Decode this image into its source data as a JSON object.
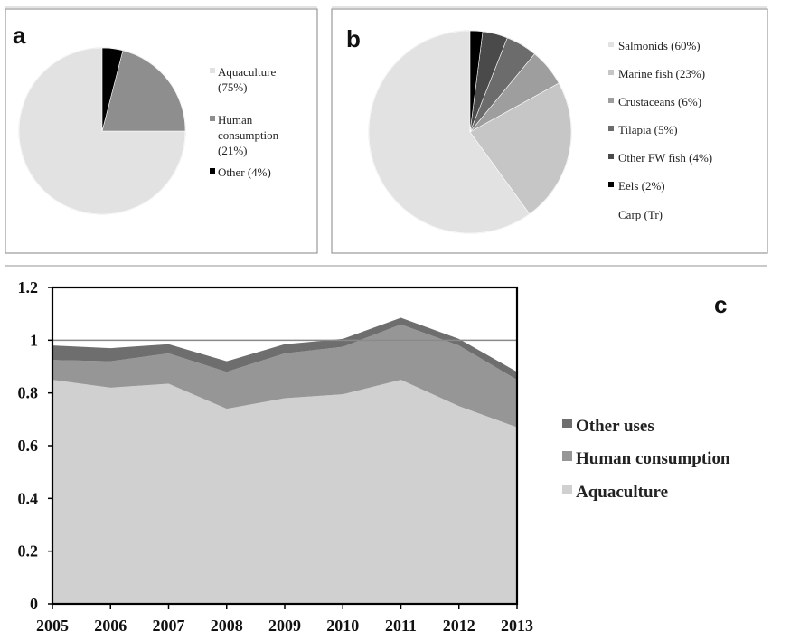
{
  "chart_data": [
    {
      "panel": "a",
      "type": "pie",
      "labels": [
        "Aquaculture (75%)",
        "Human consumption (21%)",
        "Other (4%)"
      ],
      "values": [
        75,
        21,
        4
      ],
      "colors": [
        "#e2e2e2",
        "#8e8e8e",
        "#000000"
      ]
    },
    {
      "panel": "b",
      "type": "pie",
      "labels": [
        "Salmonids (60%)",
        "Marine fish (23%)",
        "Crustaceans (6%)",
        "Tilapia (5%)",
        "Other FW fish (4%)",
        "Eels (2%)",
        "Carp (Tr)"
      ],
      "values": [
        60,
        23,
        6,
        5,
        4,
        2,
        0
      ],
      "colors": [
        "#e2e2e2",
        "#c6c6c6",
        "#9e9e9e",
        "#6c6c6c",
        "#4a4a4a",
        "#000000",
        "#ffffff"
      ]
    },
    {
      "panel": "c",
      "type": "area",
      "stacked": true,
      "x": [
        2005,
        2006,
        2007,
        2008,
        2009,
        2010,
        2011,
        2012,
        2013
      ],
      "series": [
        {
          "name": "Aquaculture",
          "values": [
            0.85,
            0.82,
            0.835,
            0.74,
            0.78,
            0.795,
            0.85,
            0.75,
            0.67
          ],
          "color": "#d0d0d0"
        },
        {
          "name": "Human consumption",
          "values": [
            0.075,
            0.1,
            0.115,
            0.14,
            0.17,
            0.18,
            0.21,
            0.23,
            0.18
          ],
          "color": "#969696"
        },
        {
          "name": "Other uses",
          "values": [
            0.055,
            0.05,
            0.035,
            0.04,
            0.035,
            0.03,
            0.025,
            0.025,
            0.03
          ],
          "color": "#6e6e6e"
        }
      ],
      "ylim": [
        0,
        1.2
      ],
      "yticks": [
        "0",
        "0.2",
        "0.4",
        "0.6",
        "0.8",
        "1",
        "1.2"
      ],
      "xticks": [
        "2005",
        "2006",
        "2007",
        "2008",
        "2009",
        "2010",
        "2011",
        "2012",
        "2013"
      ],
      "reference_line": 1,
      "legend": [
        "Other uses",
        "Human consumption",
        "Aquaculture"
      ],
      "legend_position": "right"
    }
  ],
  "panel_labels": {
    "a": "a",
    "b": "b",
    "c": "c"
  },
  "legend_a": [
    "Aquaculture",
    "(75%)",
    "Human",
    "consumption",
    "(21%)",
    "Other (4%)"
  ],
  "legend_b": [
    "Salmonids (60%)",
    "Marine fish (23%)",
    "Crustaceans (6%)",
    "Tilapia (5%)",
    "Other FW fish (4%)",
    "Eels (2%)",
    "Carp (Tr)"
  ],
  "legend_c": [
    "Other uses",
    "Human consumption",
    "Aquaculture"
  ]
}
